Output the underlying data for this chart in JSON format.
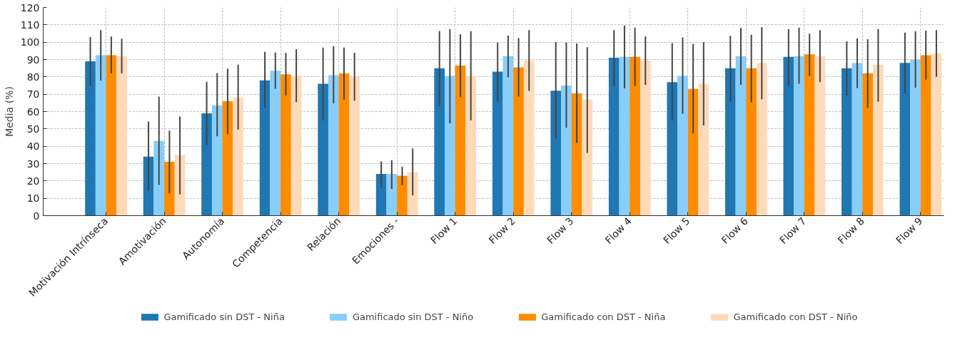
{
  "chart_data": {
    "type": "bar",
    "ylabel": "Media (%)",
    "categories": [
      "Motivación Intrínseca",
      "Amotivación",
      "Autonomía",
      "Competencia",
      "Relación",
      "Emociones -",
      "Flow 1",
      "Flow 2",
      "Flow 3",
      "Flow 4",
      "Flow 5",
      "Flow 6",
      "Flow 7",
      "Flow 8",
      "Flow 9"
    ],
    "ylim": [
      0,
      120
    ],
    "yticks": [
      0,
      10,
      20,
      30,
      40,
      50,
      60,
      70,
      80,
      90,
      100,
      110,
      120
    ],
    "grid": true,
    "legend": "bottom",
    "series": [
      {
        "name": "Gamificado sin DST - Niña",
        "color": "#1f77b4",
        "values": [
          89,
          34,
          59,
          78,
          76,
          24,
          85,
          83,
          72,
          91,
          77,
          85,
          91.5,
          85,
          88
        ],
        "errors": [
          [
            74.6,
            102.9
          ],
          [
            14.6,
            54.2
          ],
          [
            40.7,
            77.2
          ],
          [
            62.1,
            94.4
          ],
          [
            54.8,
            96.9
          ],
          [
            16.2,
            31.2
          ],
          [
            63.3,
            106.4
          ],
          [
            65.7,
            99.8
          ],
          [
            44.3,
            100.1
          ],
          [
            74.6,
            107
          ],
          [
            54.8,
            99.5
          ],
          [
            66,
            103.7
          ],
          [
            74.8,
            107.5
          ],
          [
            69,
            100.5
          ],
          [
            70.7,
            105.5
          ]
        ]
      },
      {
        "name": "Gamificado sin DST - Niño",
        "color": "#87cefa",
        "values": [
          92.5,
          43,
          63.5,
          83.5,
          81,
          24,
          80.5,
          92,
          75,
          91.5,
          80.5,
          92,
          92,
          88,
          90
        ],
        "errors": [
          [
            77.9,
            107
          ],
          [
            17.8,
            68.6
          ],
          [
            45.7,
            82.2
          ],
          [
            73.2,
            94
          ],
          [
            64.7,
            97.7
          ],
          [
            15.4,
            32
          ],
          [
            53.2,
            107.5
          ],
          [
            79.7,
            103.8
          ],
          [
            50.6,
            99.8
          ],
          [
            73.4,
            109.6
          ],
          [
            58.8,
            102.7
          ],
          [
            75.4,
            108.2
          ],
          [
            76,
            108.4
          ],
          [
            73.6,
            102.1
          ],
          [
            73.8,
            106.3
          ]
        ]
      },
      {
        "name": "Gamificado con DST - Niña",
        "color": "#ff8c00",
        "values": [
          92.5,
          31,
          66,
          81.5,
          82,
          23,
          86.5,
          85.5,
          70.5,
          91.5,
          73,
          85,
          93,
          82,
          92.5
        ],
        "errors": [
          [
            82,
            103.3
          ],
          [
            12.8,
            49
          ],
          [
            47,
            84.8
          ],
          [
            69.2,
            93.8
          ],
          [
            66.9,
            96.9
          ],
          [
            17.6,
            28.3
          ],
          [
            68.3,
            104.6
          ],
          [
            68.6,
            102.3
          ],
          [
            41.9,
            99.2
          ],
          [
            74.8,
            108.4
          ],
          [
            47.6,
            98.9
          ],
          [
            65.3,
            104.3
          ],
          [
            80.5,
            104.9
          ],
          [
            62.1,
            101.7
          ],
          [
            78.4,
            106.6
          ]
        ]
      },
      {
        "name": "Gamificado con DST - Niño",
        "color": "#ffdab9",
        "values": [
          92,
          35,
          68,
          80.5,
          80,
          25,
          80.5,
          89.5,
          67,
          89.5,
          76,
          88,
          92,
          87,
          93.5
        ],
        "errors": [
          [
            82,
            102
          ],
          [
            12.2,
            57.2
          ],
          [
            49.6,
            87
          ],
          [
            65.4,
            96
          ],
          [
            66.3,
            93.9
          ],
          [
            11.6,
            38.7
          ],
          [
            55,
            106.3
          ],
          [
            71.9,
            107
          ],
          [
            36.2,
            97.1
          ],
          [
            75.4,
            103.4
          ],
          [
            52,
            100.1
          ],
          [
            67.1,
            108.7
          ],
          [
            77,
            106.9
          ],
          [
            65.7,
            107.6
          ],
          [
            80,
            107
          ]
        ]
      }
    ]
  }
}
